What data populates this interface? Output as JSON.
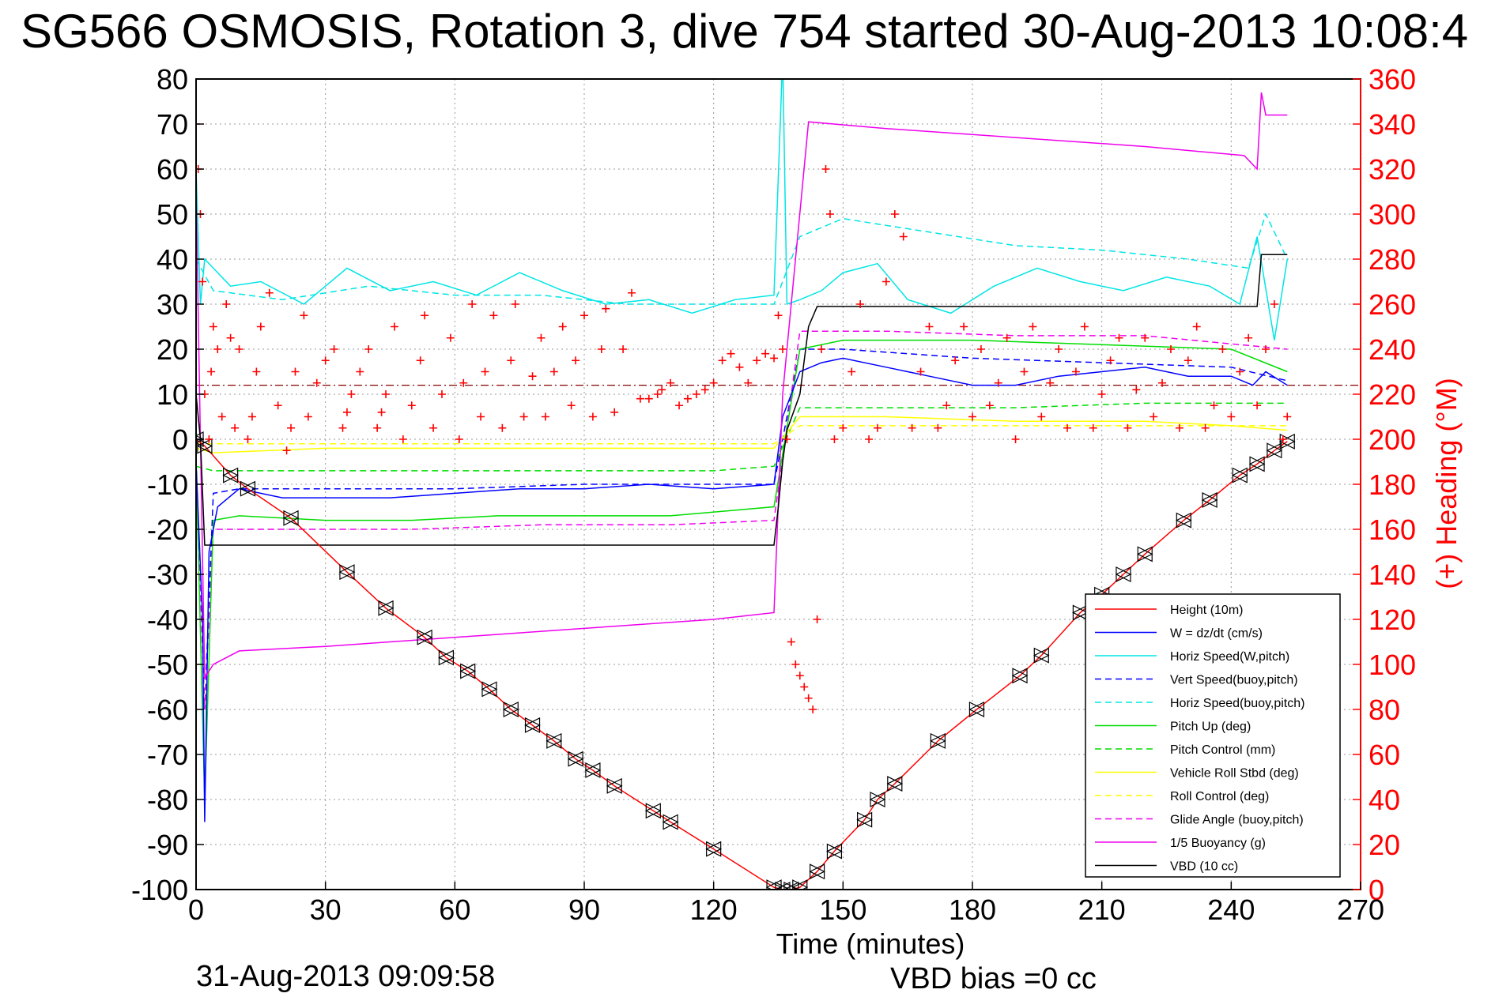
{
  "title": "SG566 OSMOSIS, Rotation 3, dive 754 started 30-Aug-2013 10:08:4",
  "footer": {
    "date": "31-Aug-2013 09:09:58",
    "vbd_bias": "VBD bias =0 cc"
  },
  "chart_data": {
    "type": "line",
    "xlabel": "Time (minutes)",
    "ylabel_right": "(+) Heading (°M)",
    "xlim": [
      0,
      270
    ],
    "ylim_left": [
      -100,
      80
    ],
    "ylim_right": [
      0,
      360
    ],
    "xticks": [
      0,
      30,
      60,
      90,
      120,
      150,
      180,
      210,
      240,
      270
    ],
    "yticks_left": [
      80,
      70,
      60,
      50,
      40,
      30,
      20,
      10,
      0,
      -10,
      -20,
      -30,
      -40,
      -50,
      -60,
      -70,
      -80,
      -90,
      -100
    ],
    "yticks_right": [
      360,
      340,
      320,
      300,
      280,
      260,
      240,
      220,
      200,
      180,
      160,
      140,
      120,
      100,
      80,
      60,
      40,
      20,
      0
    ],
    "grid": true,
    "legend_position": "bottom-right",
    "legend": [
      {
        "label": "Height (10m)",
        "color": "#ff0000",
        "style": "solid"
      },
      {
        "label": "W = dz/dt (cm/s)",
        "color": "#0000ff",
        "style": "solid"
      },
      {
        "label": "Horiz Speed(W,pitch)",
        "color": "#00e5e5",
        "style": "solid"
      },
      {
        "label": "Vert Speed(buoy,pitch)",
        "color": "#0000ff",
        "style": "dashed"
      },
      {
        "label": "Horiz Speed(buoy,pitch)",
        "color": "#00e5e5",
        "style": "dashed"
      },
      {
        "label": "Pitch Up (deg)",
        "color": "#00dd00",
        "style": "solid"
      },
      {
        "label": "Pitch Control (mm)",
        "color": "#00dd00",
        "style": "dashed"
      },
      {
        "label": "Vehicle Roll Stbd (deg)",
        "color": "#ffff00",
        "style": "solid"
      },
      {
        "label": "Roll Control (deg)",
        "color": "#ffff00",
        "style": "dashed"
      },
      {
        "label": "Glide Angle (buoy,pitch)",
        "color": "#ee00ee",
        "style": "dashed"
      },
      {
        "label": "1/5 Buoyancy (g)",
        "color": "#ee00ee",
        "style": "solid"
      },
      {
        "label": "VBD (10 cc)",
        "color": "#000000",
        "style": "solid"
      }
    ],
    "series": [
      {
        "name": "Height (10m)",
        "color": "#ff0000",
        "style": "solid",
        "x": [
          0,
          2,
          8,
          12,
          22,
          35,
          44,
          53,
          58,
          63,
          68,
          73,
          78,
          83,
          88,
          92,
          97,
          106,
          110,
          120,
          134,
          136,
          138,
          140,
          144,
          148,
          155,
          158,
          162,
          172,
          181,
          191,
          196,
          205,
          210,
          215,
          220,
          229,
          235,
          242,
          246,
          250,
          253
        ],
        "y": [
          0,
          -1.5,
          -8,
          -11,
          -17.5,
          -29.5,
          -37.5,
          -44,
          -48.5,
          -51.5,
          -55.5,
          -60,
          -63.5,
          -67,
          -71,
          -73.5,
          -77,
          -82.5,
          -85,
          -91,
          -99.5,
          -100,
          -100,
          -99.5,
          -96,
          -91.5,
          -84.5,
          -80,
          -76.5,
          -67,
          -60,
          -52.5,
          -48,
          -38.5,
          -34.5,
          -30,
          -25.5,
          -18,
          -13.5,
          -8,
          -5.5,
          -2.5,
          -0.5
        ]
      },
      {
        "name": "W = dz/dt (cm/s)",
        "color": "#0000ff",
        "style": "solid",
        "x": [
          0,
          1.5,
          2,
          3,
          5,
          10,
          20,
          30,
          45,
          60,
          75,
          90,
          105,
          120,
          134,
          136,
          140,
          145,
          150,
          160,
          170,
          180,
          190,
          200,
          210,
          220,
          230,
          240,
          245,
          248,
          253
        ],
        "y": [
          -5,
          -40,
          -85,
          -25,
          -15,
          -11,
          -13,
          -13,
          -13,
          -12,
          -11,
          -11,
          -10,
          -11,
          -10,
          5,
          15,
          17,
          18,
          16,
          14,
          12,
          12,
          14,
          15,
          16,
          14,
          14,
          12,
          15,
          12
        ]
      },
      {
        "name": "Horiz Speed(W,pitch)",
        "color": "#00e5e5",
        "style": "solid",
        "x": [
          0,
          1,
          2,
          4,
          8,
          15,
          25,
          35,
          45,
          55,
          65,
          75,
          85,
          95,
          105,
          115,
          125,
          134,
          136,
          137,
          140,
          145,
          150,
          158,
          165,
          175,
          185,
          195,
          205,
          215,
          225,
          235,
          242,
          246,
          250,
          253
        ],
        "y": [
          60,
          30,
          40,
          38,
          34,
          35,
          30,
          38,
          33,
          35,
          32,
          37,
          33,
          30,
          31,
          28,
          31,
          32,
          85,
          30,
          31,
          33,
          37,
          39,
          31,
          28,
          34,
          38,
          35,
          33,
          36,
          34,
          30,
          45,
          22,
          40
        ]
      },
      {
        "name": "Vert Speed(buoy,pitch)",
        "color": "#0000ff",
        "style": "dashed",
        "x": [
          0,
          2,
          4,
          10,
          30,
          60,
          90,
          120,
          134,
          140,
          150,
          180,
          210,
          240,
          253
        ],
        "y": [
          -5,
          -60,
          -12,
          -11,
          -11,
          -11,
          -10,
          -10,
          -10,
          20,
          20,
          18,
          17,
          16,
          13
        ]
      },
      {
        "name": "Horiz Speed(buoy,pitch)",
        "color": "#00e5e5",
        "style": "dashed",
        "x": [
          0,
          4,
          20,
          40,
          60,
          80,
          100,
          120,
          134,
          140,
          150,
          170,
          190,
          210,
          230,
          244,
          248,
          253
        ],
        "y": [
          40,
          33,
          31,
          34,
          32,
          32,
          30,
          30,
          30,
          45,
          49,
          46,
          43,
          42,
          40,
          38,
          50,
          40
        ]
      },
      {
        "name": "Pitch Up (deg)",
        "color": "#00dd00",
        "style": "solid",
        "x": [
          0,
          2,
          4,
          10,
          30,
          50,
          70,
          90,
          110,
          134,
          140,
          150,
          180,
          210,
          240,
          253
        ],
        "y": [
          -5,
          -80,
          -18,
          -17,
          -18,
          -18,
          -17,
          -17,
          -17,
          -15,
          20,
          22,
          22,
          21,
          20,
          15
        ]
      },
      {
        "name": "Pitch Control (mm)",
        "color": "#00dd00",
        "style": "dashed",
        "x": [
          0,
          4,
          30,
          60,
          90,
          120,
          134,
          140,
          160,
          190,
          220,
          253
        ],
        "y": [
          -6,
          -7,
          -7,
          -7,
          -7,
          -7,
          -6,
          7,
          7,
          7,
          8,
          8
        ]
      },
      {
        "name": "Vehicle Roll Stbd (deg)",
        "color": "#ffff00",
        "style": "solid",
        "x": [
          0,
          4,
          30,
          60,
          90,
          120,
          134,
          140,
          160,
          190,
          220,
          240,
          253
        ],
        "y": [
          -2,
          -3,
          -2,
          -2,
          -2,
          -2,
          -2,
          5,
          5,
          4,
          4,
          3,
          2
        ]
      },
      {
        "name": "Roll Control (deg)",
        "color": "#ffff00",
        "style": "dashed",
        "x": [
          0,
          10,
          40,
          70,
          100,
          134,
          140,
          170,
          200,
          230,
          253
        ],
        "y": [
          -1,
          -1,
          -1,
          -1,
          -1,
          -1,
          3,
          3,
          3,
          3,
          3
        ]
      },
      {
        "name": "Glide Angle (buoy,pitch)",
        "color": "#ee00ee",
        "style": "dashed",
        "x": [
          0,
          2,
          4,
          20,
          50,
          80,
          110,
          134,
          140,
          160,
          190,
          220,
          253
        ],
        "y": [
          -5,
          -60,
          -20,
          -20,
          -20,
          -19,
          -19,
          -18,
          24,
          24,
          23,
          23,
          20
        ]
      },
      {
        "name": "1/5 Buoyancy (g)",
        "color": "#ee00ee",
        "style": "solid",
        "x": [
          0,
          1,
          2,
          4,
          10,
          30,
          60,
          90,
          120,
          134,
          136,
          142,
          160,
          190,
          220,
          243,
          246,
          247,
          248,
          253
        ],
        "y": [
          55,
          0,
          -53,
          -50,
          -47,
          -46,
          -44,
          -42,
          -40,
          -38.5,
          10,
          70.5,
          69,
          67,
          65,
          63,
          60,
          77,
          72,
          72
        ]
      },
      {
        "name": "VBD (10 cc)",
        "color": "#000000",
        "style": "solid",
        "x": [
          0,
          1,
          2,
          10,
          60,
          100,
          134,
          135,
          136,
          137,
          140,
          142,
          144,
          246,
          247,
          253
        ],
        "y": [
          10,
          0,
          -23.5,
          -23.5,
          -23.5,
          -23.5,
          -23.5,
          -15,
          -5,
          2,
          10,
          25,
          29.5,
          29.5,
          41,
          41
        ]
      }
    ],
    "reference_lines": [
      {
        "color": "#880000",
        "style": "dash-dot",
        "y": 12
      }
    ],
    "heading_scatter": {
      "name": "(+) Heading",
      "color": "#ff0000",
      "marker": "+",
      "axis": "right",
      "x": [
        0,
        0.5,
        1,
        1.5,
        2,
        3,
        3.5,
        4,
        5,
        6,
        7,
        8,
        9,
        10,
        12,
        13,
        14,
        15,
        17,
        19,
        21,
        22,
        23,
        25,
        26,
        28,
        30,
        32,
        34,
        35,
        36,
        38,
        40,
        42,
        43,
        44,
        46,
        48,
        50,
        52,
        53,
        55,
        57,
        59,
        61,
        62,
        64,
        66,
        67,
        69,
        71,
        73,
        74,
        76,
        78,
        80,
        81,
        83,
        85,
        87,
        88,
        90,
        92,
        94,
        95,
        97,
        99,
        101,
        103,
        105,
        107,
        108,
        110,
        112,
        114,
        116,
        118,
        120,
        122,
        124,
        126,
        128,
        130,
        132,
        134,
        135,
        136,
        137,
        138,
        139,
        140,
        141,
        142,
        143,
        144,
        145,
        146,
        147,
        148,
        150,
        152,
        154,
        156,
        158,
        160,
        162,
        164,
        166,
        168,
        170,
        172,
        174,
        176,
        178,
        180,
        182,
        184,
        186,
        188,
        190,
        192,
        194,
        196,
        198,
        200,
        202,
        204,
        206,
        208,
        210,
        212,
        214,
        216,
        218,
        220,
        222,
        224,
        226,
        228,
        230,
        232,
        234,
        236,
        238,
        240,
        242,
        244,
        246,
        248,
        250,
        252,
        253
      ],
      "y": [
        340,
        320,
        300,
        270,
        220,
        200,
        230,
        250,
        240,
        210,
        260,
        245,
        205,
        240,
        200,
        210,
        230,
        250,
        265,
        215,
        195,
        205,
        230,
        255,
        210,
        225,
        235,
        240,
        205,
        212,
        220,
        230,
        240,
        205,
        212,
        220,
        250,
        200,
        215,
        235,
        255,
        205,
        220,
        245,
        200,
        225,
        260,
        210,
        230,
        255,
        205,
        235,
        260,
        210,
        228,
        245,
        210,
        230,
        250,
        215,
        235,
        255,
        210,
        240,
        258,
        212,
        240,
        265,
        218,
        218,
        220,
        222,
        225,
        215,
        218,
        220,
        222,
        225,
        235,
        238,
        232,
        225,
        235,
        238,
        236,
        255,
        240,
        200,
        110,
        100,
        95,
        90,
        85,
        80,
        120,
        240,
        320,
        300,
        200,
        205,
        230,
        260,
        200,
        205,
        270,
        300,
        290,
        205,
        230,
        250,
        205,
        215,
        235,
        250,
        210,
        240,
        215,
        225,
        245,
        200,
        230,
        250,
        210,
        225,
        240,
        205,
        230,
        250,
        205,
        220,
        235,
        245,
        205,
        222,
        245,
        210,
        225,
        240,
        205,
        235,
        250,
        205,
        215,
        240,
        210,
        230,
        245,
        215,
        240,
        260,
        200,
        210
      ]
    }
  }
}
